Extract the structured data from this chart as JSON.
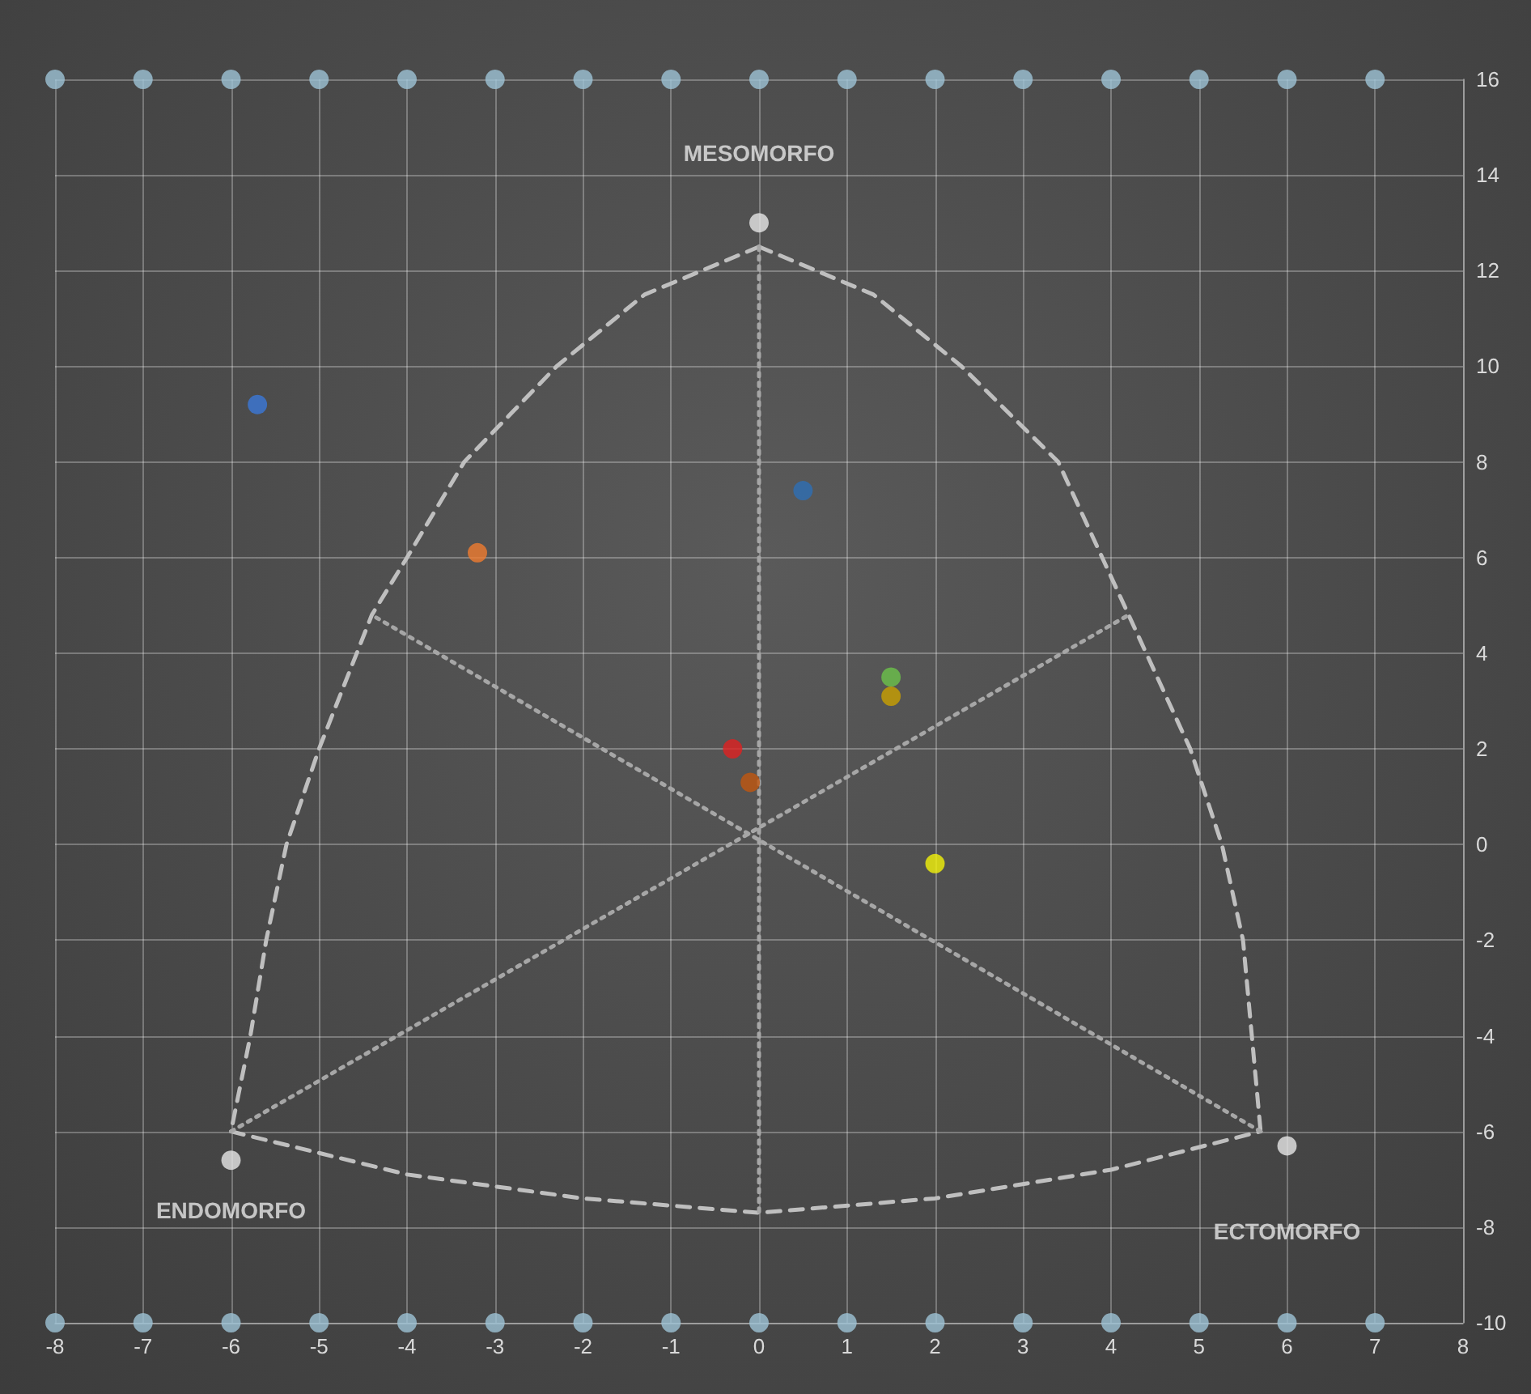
{
  "chart_data": {
    "type": "scatter",
    "xlim": [
      -8,
      8
    ],
    "xticks": [
      -8,
      -7,
      -6,
      -5,
      -4,
      -3,
      -2,
      -1,
      0,
      1,
      2,
      3,
      4,
      5,
      6,
      7,
      8
    ],
    "ylim": [
      -10,
      16
    ],
    "yticks": [
      -10,
      -8,
      -6,
      -4,
      -2,
      0,
      2,
      4,
      6,
      8,
      10,
      12,
      14,
      16
    ],
    "grid": true,
    "marker": "circle",
    "series": [
      {
        "type": "line",
        "marker": "none",
        "line_style": "dashed",
        "color": "#bfbfbf",
        "x": [
          0,
          -1.3,
          -2.3,
          -3.35,
          -4.0,
          -4.4,
          -5.0,
          -5.37,
          -5.6,
          -5.78,
          -6
        ],
        "values": [
          12.5,
          11.5,
          10,
          8,
          6,
          4.8,
          2,
          0,
          -2,
          -4,
          -6
        ]
      },
      {
        "type": "line",
        "marker": "none",
        "line_style": "dashed",
        "color": "#bfbfbf",
        "x": [
          0,
          1.3,
          2.3,
          3.4,
          3.9,
          4.2,
          4.9,
          5.26,
          5.5,
          5.6,
          5.7
        ],
        "values": [
          12.5,
          11.5,
          10,
          8,
          6,
          4.8,
          2,
          0,
          -2,
          -4,
          -6
        ]
      },
      {
        "type": "line",
        "marker": "none",
        "line_style": "dashed",
        "color": "#bfbfbf",
        "x": [
          -6,
          -4,
          -2,
          0,
          2,
          4,
          5.7
        ],
        "values": [
          -6,
          -6.9,
          -7.4,
          -7.7,
          -7.4,
          -6.8,
          -6
        ]
      },
      {
        "type": "line",
        "marker": "none",
        "line_style": "dotted",
        "color": "#a6a6a6",
        "x": [
          0,
          0
        ],
        "values": [
          12.5,
          -7.7
        ]
      },
      {
        "type": "line",
        "marker": "none",
        "line_style": "dotted",
        "color": "#a6a6a6",
        "x": [
          -6,
          4.2
        ],
        "values": [
          -6,
          4.8
        ]
      },
      {
        "type": "line",
        "marker": "none",
        "line_style": "dotted",
        "color": "#a6a6a6",
        "x": [
          5.7,
          -4.4
        ],
        "values": [
          -6,
          4.8
        ]
      },
      {
        "color": "#9dc3d6",
        "x": [
          -8,
          -7,
          -6,
          -5,
          -4,
          -3,
          -2,
          -1,
          0,
          1,
          2,
          3,
          4,
          5,
          6,
          7
        ],
        "values": [
          16,
          16,
          16,
          16,
          16,
          16,
          16,
          16,
          16,
          16,
          16,
          16,
          16,
          16,
          16,
          16
        ]
      },
      {
        "color": "#9dc3d6",
        "x": [
          -8,
          -7,
          -6,
          -5,
          -4,
          -3,
          -2,
          -1,
          0,
          1,
          2,
          3,
          4,
          5,
          6,
          7
        ],
        "values": [
          -10,
          -10,
          -10,
          -10,
          -10,
          -10,
          -10,
          -10,
          -10,
          -10,
          -10,
          -10,
          -10,
          -10,
          -10,
          -10
        ]
      },
      {
        "color": "#e6e6e6",
        "x": [
          0,
          -6,
          6
        ],
        "values": [
          13,
          -6.6,
          -6.3
        ],
        "value_labels": [
          "MESOMORFO",
          "ENDOMORFO",
          "ECTOMORFO"
        ]
      },
      {
        "color": "#3b78d8",
        "x": [
          -5.7
        ],
        "values": [
          9.2
        ]
      },
      {
        "color": "#2e6fb5",
        "x": [
          0.5
        ],
        "values": [
          7.4
        ]
      },
      {
        "color": "#f07c30",
        "x": [
          -3.2
        ],
        "values": [
          6.1
        ]
      },
      {
        "color": "#6cc24a",
        "x": [
          1.5
        ],
        "values": [
          3.5
        ]
      },
      {
        "color": "#c9a000",
        "x": [
          1.5
        ],
        "values": [
          3.1
        ]
      },
      {
        "color": "#e02020",
        "x": [
          -0.3
        ],
        "values": [
          2
        ]
      },
      {
        "color": "#c0560f",
        "x": [
          -0.1
        ],
        "values": [
          1.3
        ]
      },
      {
        "color": "#f2f20a",
        "x": [
          2
        ],
        "values": [
          -0.4
        ]
      }
    ]
  }
}
